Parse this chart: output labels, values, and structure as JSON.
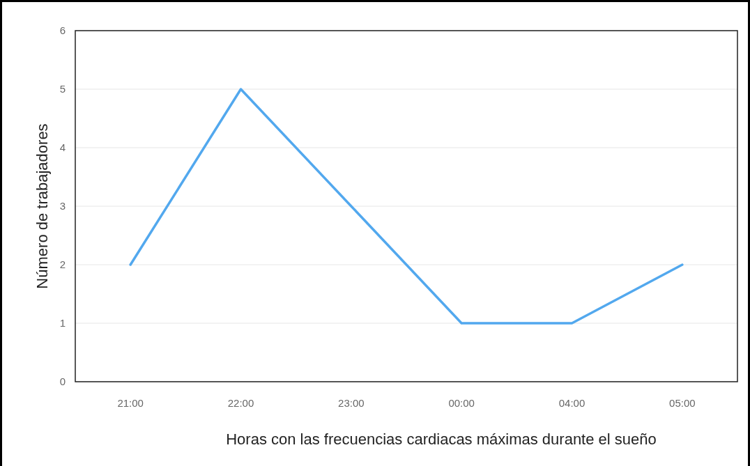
{
  "chart_data": {
    "type": "line",
    "xlabel": "Horas con las frecuencias cardiacas máximas durante el sueño",
    "ylabel": "Número de trabajadores",
    "categories": [
      "21:00",
      "22:00",
      "23:00",
      "00:00",
      "04:00",
      "05:00"
    ],
    "series": [
      {
        "color": "#52a8ee",
        "values": [
          2,
          5,
          3,
          1,
          1,
          2
        ]
      }
    ],
    "ylim": [
      0,
      6
    ],
    "yticks": [
      0,
      1,
      2,
      3,
      4,
      5,
      6
    ],
    "grid": "y",
    "marker": "none",
    "line_style": "solid"
  }
}
